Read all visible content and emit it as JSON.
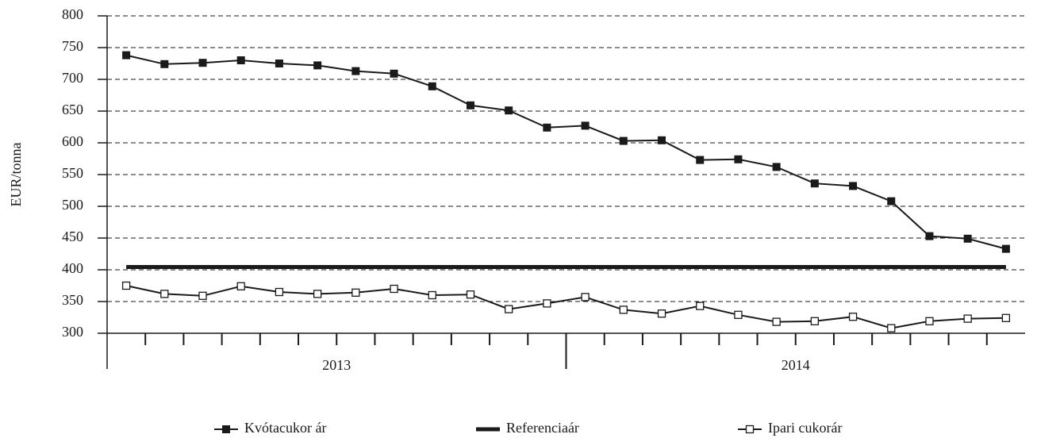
{
  "chart_data": {
    "type": "line",
    "y_label": "EUR/tonna",
    "categories": [
      null,
      null,
      null,
      null,
      null,
      null,
      null,
      null,
      null,
      null,
      null,
      null,
      null,
      null,
      null,
      null,
      null,
      null,
      null,
      null,
      null,
      null,
      null,
      null
    ],
    "groups": [
      "2013",
      "2014"
    ],
    "series": [
      {
        "name": "Kvótacukor ár",
        "color": "#1a1a1a",
        "marker": "filled-square",
        "values": [
          738,
          724,
          726,
          730,
          725,
          722,
          713,
          709,
          689,
          659,
          651,
          624,
          627,
          603,
          604,
          573,
          574,
          562,
          536,
          532,
          508,
          453,
          449,
          433
        ]
      },
      {
        "name": "Referenciaár",
        "color": "#1a1a1a",
        "marker": "none",
        "values": [
          404.4,
          404.4,
          404.4,
          404.4,
          404.4,
          404.4,
          404.4,
          404.4,
          404.4,
          404.4,
          404.4,
          404.4,
          404.4,
          404.4,
          404.4,
          404.4,
          404.4,
          404.4,
          404.4,
          404.4,
          404.4,
          404.4,
          404.4,
          404.4
        ]
      },
      {
        "name": "Ipari cukorár",
        "color": "#1a1a1a",
        "marker": "open-square",
        "values": [
          375,
          362,
          359,
          374,
          365,
          362,
          364,
          370,
          360,
          361,
          338,
          347,
          357,
          337,
          331,
          343,
          329,
          318,
          319,
          326,
          308,
          319,
          323,
          324
        ]
      }
    ],
    "ylim": [
      300,
      800
    ],
    "yticks": [
      300,
      350,
      400,
      450,
      500,
      550,
      600,
      650,
      700,
      750,
      800
    ],
    "grid": true,
    "legend": "bottom"
  }
}
